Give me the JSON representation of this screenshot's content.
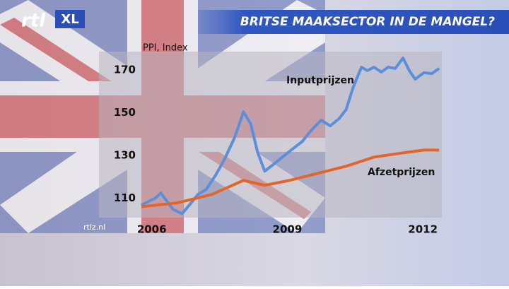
{
  "branding": {
    "logo": "rtl",
    "badge": "XL",
    "source": "rtlz.nl"
  },
  "chart_data": {
    "type": "line",
    "title": "BRITSE MAAKSECTOR IN DE MANGEL?",
    "y_label": "PPI, Index",
    "xlim": [
      2005.77,
      2012.42
    ],
    "xticks": [
      2006,
      2009,
      2012
    ],
    "ylim": [
      103.5,
      178.6
    ],
    "yticks": [
      110,
      130,
      150,
      170
    ],
    "series": [
      {
        "name": "Inputprijzen",
        "color": "#5b8fdb",
        "x": [
          2005.77,
          2005.92,
          2006.08,
          2006.2,
          2006.31,
          2006.47,
          2006.67,
          2006.83,
          2007.02,
          2007.2,
          2007.41,
          2007.61,
          2007.83,
          2008.03,
          2008.19,
          2008.34,
          2008.5,
          2008.7,
          2008.89,
          2009.13,
          2009.33,
          2009.52,
          2009.75,
          2009.95,
          2010.14,
          2010.3,
          2010.45,
          2010.64,
          2010.77,
          2010.92,
          2011.08,
          2011.23,
          2011.39,
          2011.56,
          2011.7,
          2011.83,
          2012.02,
          2012.2,
          2012.36
        ],
        "values": [
          106.7,
          108.3,
          110,
          112.3,
          109.3,
          104.7,
          102.7,
          106.7,
          111.7,
          114,
          120.6,
          128.2,
          138.2,
          150.4,
          144.8,
          131.6,
          122.6,
          125.9,
          129.2,
          133.2,
          136.5,
          141.5,
          146.5,
          143.8,
          147.1,
          151.4,
          161.4,
          171.3,
          169.7,
          171.3,
          169,
          171.3,
          170.7,
          175.6,
          169.7,
          165.7,
          168.7,
          168.3,
          170.7
        ]
      },
      {
        "name": "Afzetprijzen",
        "color": "#e2652b",
        "x": [
          2005.77,
          2006.55,
          2007.33,
          2008.03,
          2008.5,
          2009.05,
          2009.67,
          2010.3,
          2010.92,
          2011.47,
          2012.02,
          2012.36
        ],
        "values": [
          106,
          107.7,
          111.7,
          118.3,
          116,
          118.3,
          121.6,
          124.9,
          129.2,
          130.9,
          132.5,
          132.5
        ]
      }
    ]
  }
}
